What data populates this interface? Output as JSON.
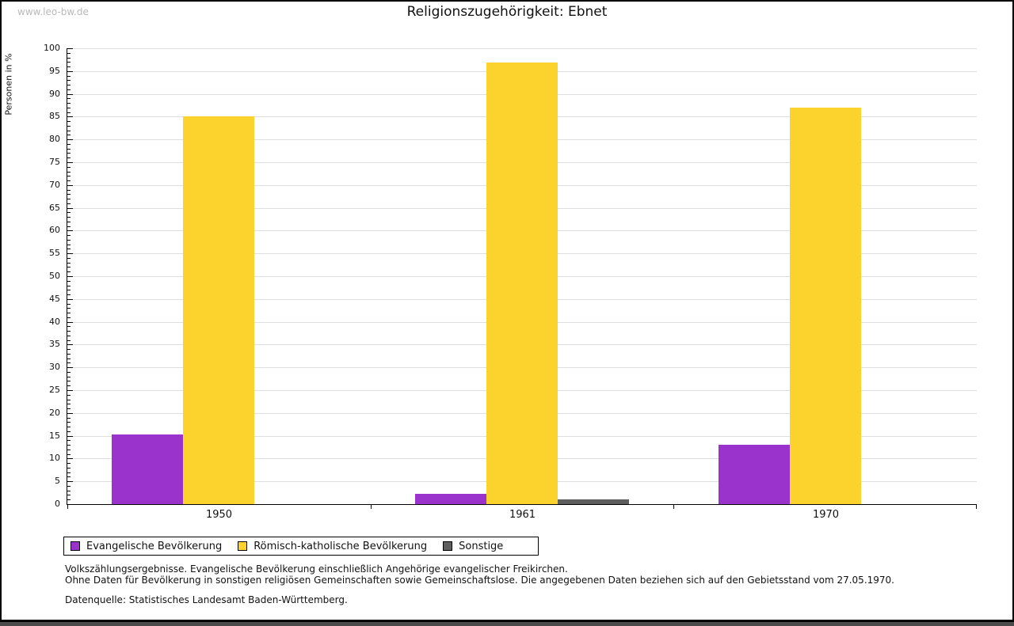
{
  "watermark": "www.leo-bw.de",
  "chart_data": {
    "type": "bar",
    "title": "Religionszugehörigkeit: Ebnet",
    "ylabel": "Personen in %",
    "xlabel": "",
    "categories": [
      "1950",
      "1961",
      "1970"
    ],
    "series": [
      {
        "name": "Evangelische Bevölkerung",
        "color": "#9933cc",
        "values": [
          15.2,
          2.3,
          13.1
        ]
      },
      {
        "name": "Römisch-katholische Bevölkerung",
        "color": "#fcd32d",
        "values": [
          85.0,
          96.9,
          86.9
        ]
      },
      {
        "name": "Sonstige",
        "color": "#5e5e5e",
        "values": [
          0,
          1.0,
          0
        ]
      }
    ],
    "ylim": [
      0,
      100
    ],
    "y_major_step": 5,
    "y_minor_step": 1,
    "grid": true,
    "legend_position": "bottom"
  },
  "footnotes": [
    "Volkszählungsergebnisse. Evangelische Bevölkerung einschließlich Angehörige evangelischer Freikirchen.",
    "Ohne Daten für Bevölkerung in sonstigen religiösen Gemeinschaften sowie Gemeinschaftslose. Die angegebenen Daten beziehen sich auf den Gebietsstand vom 27.05.1970."
  ],
  "source": "Datenquelle: Statistisches Landesamt Baden-Württemberg.",
  "colors": {
    "gridline": "#dedede",
    "axis": "#000000",
    "watermark": "#b9b9b9",
    "bottom_bar": "#4a4a4a"
  }
}
